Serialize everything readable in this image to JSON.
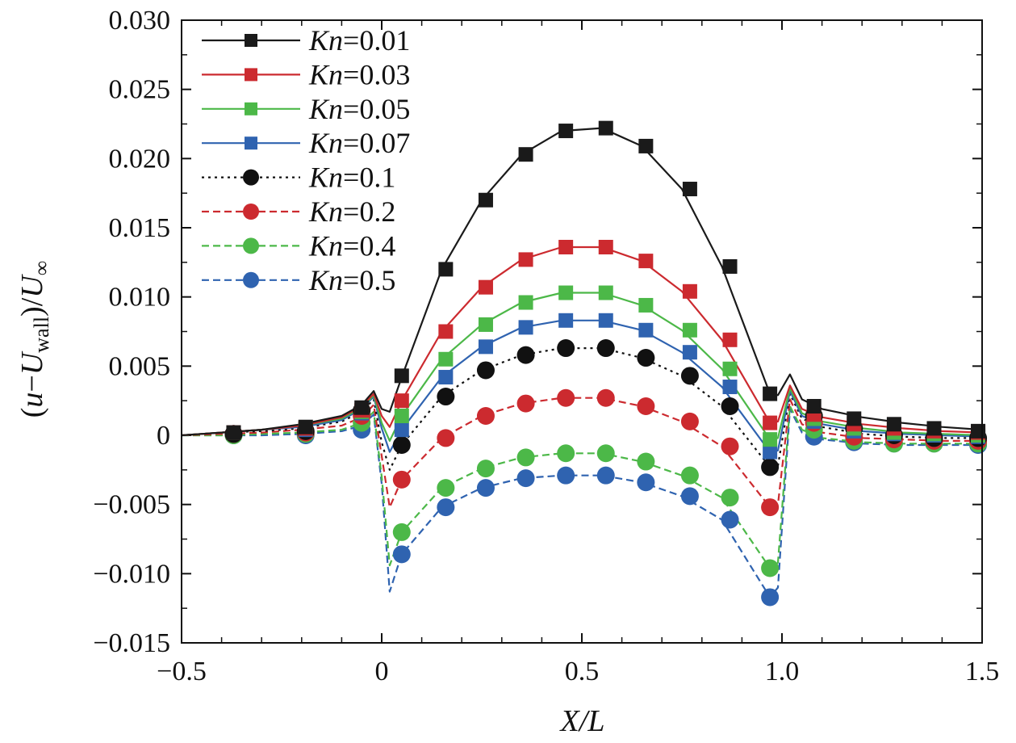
{
  "chart_data": {
    "type": "line",
    "xlabel": {
      "italic": "X/L"
    },
    "ylabel": {
      "prefix": "(",
      "u": "u",
      "minus": "−",
      "U": "U",
      "wall": "wall",
      "mid": ")/",
      "Uinf": "U",
      "inf": "∞"
    },
    "xlim": [
      -0.5,
      1.5
    ],
    "ylim": [
      -0.015,
      0.03
    ],
    "xticks": [
      -0.5,
      0,
      0.5,
      1.0,
      1.5
    ],
    "xtick_labels": [
      "−0.5",
      "0",
      "0.5",
      "1.0",
      "1.5"
    ],
    "yticks": [
      -0.015,
      -0.01,
      -0.005,
      0,
      0.005,
      0.01,
      0.015,
      0.02,
      0.025,
      0.03
    ],
    "ytick_labels": [
      "−0.015",
      "−0.010",
      "−0.005",
      "0",
      "0.005",
      "0.010",
      "0.015",
      "0.020",
      "0.025",
      "0.030"
    ],
    "legend_position": "top-left",
    "series": [
      {
        "name": "0.01",
        "label_prefix": "Kn",
        "color": "#1a1a1a",
        "dash": "solid",
        "marker": "square",
        "line_x": [
          -0.5,
          -0.4,
          -0.3,
          -0.2,
          -0.1,
          -0.05,
          -0.02,
          0.0,
          0.02,
          0.05,
          0.15,
          0.25,
          0.35,
          0.45,
          0.55,
          0.65,
          0.75,
          0.85,
          0.97,
          0.99,
          1.02,
          1.05,
          1.1,
          1.2,
          1.3,
          1.4,
          1.5
        ],
        "line_y": [
          0.0,
          0.0002,
          0.0004,
          0.0008,
          0.0014,
          0.0022,
          0.0032,
          0.0019,
          0.0017,
          0.0042,
          0.012,
          0.017,
          0.0203,
          0.022,
          0.0222,
          0.0209,
          0.0178,
          0.0122,
          0.003,
          0.0029,
          0.0044,
          0.0026,
          0.0019,
          0.0013,
          0.0009,
          0.0006,
          0.0004
        ],
        "marker_x": [
          -0.37,
          -0.19,
          -0.05,
          0.05,
          0.16,
          0.26,
          0.36,
          0.46,
          0.56,
          0.66,
          0.77,
          0.87,
          0.97,
          1.08,
          1.18,
          1.28,
          1.38,
          1.49
        ],
        "marker_y": [
          0.0002,
          0.0006,
          0.002,
          0.0043,
          0.012,
          0.017,
          0.0203,
          0.022,
          0.0222,
          0.0209,
          0.0178,
          0.0122,
          0.003,
          0.0021,
          0.0012,
          0.0008,
          0.0005,
          0.0003
        ]
      },
      {
        "name": "0.03",
        "label_prefix": "Kn",
        "color": "#cc2a2f",
        "dash": "solid",
        "marker": "square",
        "line_x": [
          -0.5,
          -0.4,
          -0.3,
          -0.2,
          -0.1,
          -0.05,
          -0.02,
          0.0,
          0.02,
          0.05,
          0.15,
          0.25,
          0.35,
          0.45,
          0.55,
          0.65,
          0.75,
          0.85,
          0.97,
          0.99,
          1.02,
          1.05,
          1.1,
          1.2,
          1.3,
          1.4,
          1.5
        ],
        "line_y": [
          0.0,
          0.0002,
          0.0004,
          0.0007,
          0.0013,
          0.0021,
          0.003,
          0.0014,
          0.0006,
          0.0025,
          0.0075,
          0.0107,
          0.0127,
          0.0136,
          0.0136,
          0.0126,
          0.0104,
          0.0069,
          0.0009,
          0.001,
          0.0036,
          0.0019,
          0.0013,
          0.0008,
          0.0005,
          0.0003,
          0.0002
        ],
        "marker_x": [
          -0.37,
          -0.19,
          -0.05,
          0.05,
          0.16,
          0.26,
          0.36,
          0.46,
          0.56,
          0.66,
          0.77,
          0.87,
          0.97,
          1.08,
          1.18,
          1.28,
          1.38,
          1.49
        ],
        "marker_y": [
          0.0002,
          0.0005,
          0.0018,
          0.0025,
          0.0075,
          0.0107,
          0.0127,
          0.0136,
          0.0136,
          0.0126,
          0.0104,
          0.0069,
          0.0009,
          0.0015,
          0.0008,
          0.0005,
          0.0003,
          0.0002
        ]
      },
      {
        "name": "0.05",
        "label_prefix": "Kn",
        "color": "#4cb848",
        "dash": "solid",
        "marker": "square",
        "line_x": [
          -0.5,
          -0.4,
          -0.3,
          -0.2,
          -0.1,
          -0.05,
          -0.02,
          0.0,
          0.02,
          0.05,
          0.15,
          0.25,
          0.35,
          0.45,
          0.55,
          0.65,
          0.75,
          0.85,
          0.97,
          0.99,
          1.02,
          1.05,
          1.1,
          1.2,
          1.3,
          1.4,
          1.5
        ],
        "line_y": [
          0.0,
          0.0002,
          0.0004,
          0.0007,
          0.0012,
          0.002,
          0.0029,
          0.0009,
          -0.0004,
          0.0014,
          0.0055,
          0.008,
          0.0096,
          0.0103,
          0.0103,
          0.0094,
          0.0076,
          0.0048,
          -0.0003,
          -0.0002,
          0.0034,
          0.0016,
          0.001,
          0.0005,
          0.0002,
          0.0001,
          0.0
        ],
        "marker_x": [
          -0.37,
          -0.19,
          -0.05,
          0.05,
          0.16,
          0.26,
          0.36,
          0.46,
          0.56,
          0.66,
          0.77,
          0.87,
          0.97,
          1.08,
          1.18,
          1.28,
          1.38,
          1.49
        ],
        "marker_y": [
          0.0002,
          0.0005,
          0.0017,
          0.0014,
          0.0055,
          0.008,
          0.0096,
          0.0103,
          0.0103,
          0.0094,
          0.0076,
          0.0048,
          -0.0003,
          0.0012,
          0.0005,
          0.0002,
          0.0001,
          0.0
        ]
      },
      {
        "name": "0.07",
        "label_prefix": "Kn",
        "color": "#2f63b0",
        "dash": "solid",
        "marker": "square",
        "line_x": [
          -0.5,
          -0.4,
          -0.3,
          -0.2,
          -0.1,
          -0.05,
          -0.02,
          0.0,
          0.02,
          0.05,
          0.15,
          0.25,
          0.35,
          0.45,
          0.55,
          0.65,
          0.75,
          0.85,
          0.97,
          0.99,
          1.02,
          1.05,
          1.1,
          1.2,
          1.3,
          1.4,
          1.5
        ],
        "line_y": [
          0.0,
          0.0002,
          0.0004,
          0.0006,
          0.0011,
          0.0019,
          0.0028,
          0.0005,
          -0.0012,
          0.0004,
          0.0042,
          0.0064,
          0.0078,
          0.0083,
          0.0083,
          0.0076,
          0.006,
          0.0035,
          -0.0012,
          -0.0011,
          0.0032,
          0.0014,
          0.0008,
          0.0003,
          0.0001,
          0.0,
          -0.0001
        ],
        "marker_x": [
          -0.37,
          -0.19,
          -0.05,
          0.05,
          0.16,
          0.26,
          0.36,
          0.46,
          0.56,
          0.66,
          0.77,
          0.87,
          0.97,
          1.08,
          1.18,
          1.28,
          1.38,
          1.49
        ],
        "marker_y": [
          0.0002,
          0.0004,
          0.0016,
          0.0004,
          0.0042,
          0.0064,
          0.0078,
          0.0083,
          0.0083,
          0.0076,
          0.006,
          0.0035,
          -0.0012,
          0.001,
          0.0003,
          0.0001,
          0.0,
          -0.0001
        ]
      },
      {
        "name": "0.1",
        "label_prefix": "Kn",
        "color": "#111111",
        "dash": "dotted",
        "marker": "circle",
        "line_x": [
          -0.5,
          -0.4,
          -0.3,
          -0.2,
          -0.1,
          -0.05,
          -0.02,
          0.0,
          0.02,
          0.05,
          0.15,
          0.25,
          0.35,
          0.45,
          0.55,
          0.65,
          0.75,
          0.85,
          0.97,
          0.99,
          1.02,
          1.05,
          1.1,
          1.2,
          1.3,
          1.4,
          1.5
        ],
        "line_y": [
          0.0,
          0.0002,
          0.0003,
          0.0005,
          0.001,
          0.0017,
          0.0026,
          -0.0005,
          -0.0025,
          -0.0007,
          0.0028,
          0.0047,
          0.0058,
          0.0063,
          0.0063,
          0.0056,
          0.0043,
          0.0021,
          -0.0023,
          -0.0022,
          0.003,
          0.0012,
          0.0006,
          0.0001,
          -0.0001,
          -0.0002,
          -0.0002
        ],
        "marker_x": [
          -0.37,
          -0.19,
          -0.05,
          0.05,
          0.16,
          0.26,
          0.36,
          0.46,
          0.56,
          0.66,
          0.77,
          0.87,
          0.97,
          1.08,
          1.18,
          1.28,
          1.38,
          1.49
        ],
        "marker_y": [
          0.0001,
          0.0003,
          0.0018,
          -0.0007,
          0.0028,
          0.0047,
          0.0058,
          0.0063,
          0.0063,
          0.0056,
          0.0043,
          0.0021,
          -0.0023,
          0.0014,
          0.0005,
          0.0,
          -0.0002,
          -0.0002
        ]
      },
      {
        "name": "0.2",
        "label_prefix": "Kn",
        "color": "#cc2a2f",
        "dash": "dashed",
        "marker": "circle",
        "line_x": [
          -0.5,
          -0.4,
          -0.3,
          -0.2,
          -0.1,
          -0.05,
          -0.02,
          0.0,
          0.02,
          0.05,
          0.15,
          0.25,
          0.35,
          0.45,
          0.55,
          0.65,
          0.75,
          0.85,
          0.97,
          0.99,
          1.02,
          1.05,
          1.1,
          1.2,
          1.3,
          1.4,
          1.5
        ],
        "line_y": [
          0.0,
          0.0001,
          0.0002,
          0.0004,
          0.0007,
          0.0013,
          0.0022,
          -0.0015,
          -0.0052,
          -0.0032,
          -0.0002,
          0.0014,
          0.0023,
          0.0027,
          0.0027,
          0.0021,
          0.001,
          -0.0008,
          -0.0052,
          -0.005,
          0.0026,
          0.0008,
          0.0002,
          -0.0002,
          -0.0003,
          -0.0004,
          -0.0004
        ],
        "marker_x": [
          -0.37,
          -0.19,
          -0.05,
          0.05,
          0.16,
          0.26,
          0.36,
          0.46,
          0.56,
          0.66,
          0.77,
          0.87,
          0.97,
          1.08,
          1.18,
          1.28,
          1.38,
          1.49
        ],
        "marker_y": [
          0.0001,
          0.0002,
          0.0014,
          -0.0032,
          -0.0002,
          0.0014,
          0.0023,
          0.0027,
          0.0027,
          0.0021,
          0.001,
          -0.0008,
          -0.0052,
          0.0009,
          -0.0001,
          -0.0003,
          -0.0004,
          -0.0004
        ]
      },
      {
        "name": "0.4",
        "label_prefix": "Kn",
        "color": "#4cb848",
        "dash": "dashed",
        "marker": "circle",
        "line_x": [
          -0.5,
          -0.4,
          -0.3,
          -0.2,
          -0.1,
          -0.05,
          -0.02,
          0.0,
          0.02,
          0.05,
          0.15,
          0.25,
          0.35,
          0.45,
          0.55,
          0.65,
          0.75,
          0.85,
          0.97,
          0.99,
          1.02,
          1.05,
          1.1,
          1.2,
          1.3,
          1.4,
          1.5
        ],
        "line_y": [
          0.0,
          0.0,
          0.0001,
          0.0002,
          0.0004,
          0.0009,
          0.0017,
          -0.003,
          -0.0094,
          -0.007,
          -0.0038,
          -0.0024,
          -0.0016,
          -0.0013,
          -0.0013,
          -0.0019,
          -0.0029,
          -0.0045,
          -0.0096,
          -0.0092,
          0.0021,
          0.0004,
          -0.0002,
          -0.0005,
          -0.0006,
          -0.0006,
          -0.0006
        ],
        "marker_x": [
          -0.37,
          -0.19,
          -0.05,
          0.05,
          0.16,
          0.26,
          0.36,
          0.46,
          0.56,
          0.66,
          0.77,
          0.87,
          0.97,
          1.08,
          1.18,
          1.28,
          1.38,
          1.49
        ],
        "marker_y": [
          0.0,
          0.0001,
          0.0009,
          -0.007,
          -0.0038,
          -0.0024,
          -0.0016,
          -0.0013,
          -0.0013,
          -0.0019,
          -0.0029,
          -0.0045,
          -0.0096,
          0.0004,
          -0.0004,
          -0.0006,
          -0.0006,
          -0.0006
        ]
      },
      {
        "name": "0.5",
        "label_prefix": "Kn",
        "color": "#2f63b0",
        "dash": "dashed",
        "marker": "circle",
        "line_x": [
          -0.5,
          -0.4,
          -0.3,
          -0.2,
          -0.1,
          -0.05,
          -0.02,
          0.0,
          0.02,
          0.05,
          0.15,
          0.25,
          0.35,
          0.45,
          0.55,
          0.65,
          0.75,
          0.85,
          0.97,
          0.99,
          1.02,
          1.05,
          1.1,
          1.2,
          1.3,
          1.4,
          1.5
        ],
        "line_y": [
          0.0,
          0.0,
          0.0,
          0.0001,
          0.0003,
          0.0007,
          0.0015,
          -0.0035,
          -0.0113,
          -0.0086,
          -0.0052,
          -0.0038,
          -0.0031,
          -0.0029,
          -0.0029,
          -0.0034,
          -0.0044,
          -0.0061,
          -0.0117,
          -0.011,
          0.0019,
          0.0002,
          -0.0003,
          -0.0006,
          -0.0007,
          -0.0007,
          -0.0007
        ],
        "marker_x": [
          -0.37,
          -0.19,
          -0.05,
          0.05,
          0.16,
          0.26,
          0.36,
          0.46,
          0.56,
          0.66,
          0.77,
          0.87,
          0.97,
          1.08,
          1.18,
          1.28,
          1.38,
          1.49
        ],
        "marker_y": [
          0.0,
          0.0,
          0.0004,
          -0.0086,
          -0.0052,
          -0.0038,
          -0.0031,
          -0.0029,
          -0.0029,
          -0.0034,
          -0.0044,
          -0.0061,
          -0.0117,
          -0.0001,
          -0.0005,
          -0.0006,
          -0.0006,
          -0.0007
        ]
      }
    ]
  }
}
